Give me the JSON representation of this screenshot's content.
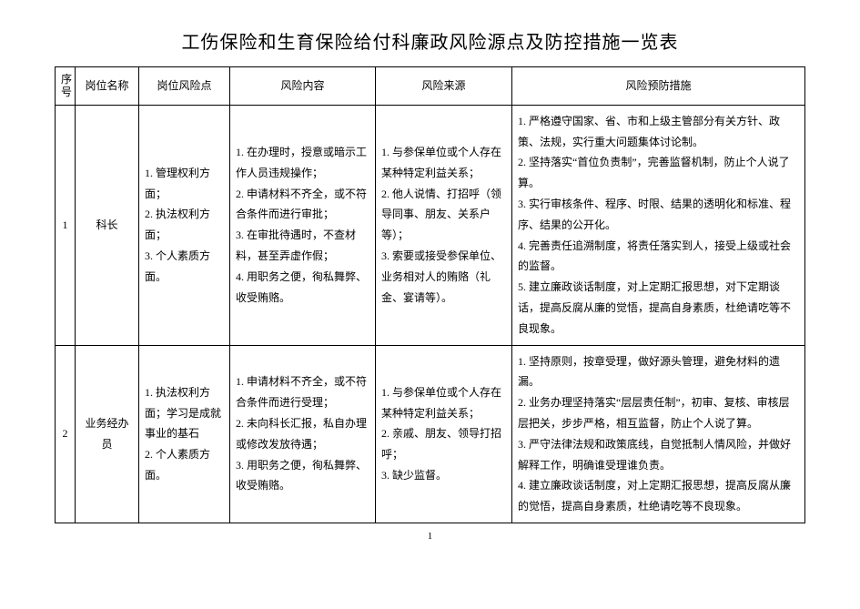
{
  "title": "工伤保险和生育保险给付科廉政风险源点及防控措施一览表",
  "page_number": "1",
  "header": {
    "seq": "序号",
    "name": "岗位名称",
    "points": "岗位风险点",
    "content": "风险内容",
    "source": "风险来源",
    "measures": "风险预防措施"
  },
  "rows": [
    {
      "seq": "1",
      "name": "科长",
      "points": "1. 管理权利方面；\n2. 执法权利方面；\n3. 个人素质方面。",
      "content": "1. 在办理时，授意或暗示工作人员违规操作；\n2. 申请材料不齐全，或不符合条件而进行审批；\n3. 在审批待遇时，不查材料，甚至弄虚作假；\n4. 用职务之便，徇私舞弊、收受贿赂。",
      "source": "1. 与参保单位或个人存在某种特定利益关系；\n2. 他人说情、打招呼（领导同事、朋友、关系户等）；\n3. 索要或接受参保单位、业务相对人的贿赂（礼金、宴请等）。",
      "measures": "1. 严格遵守国家、省、市和上级主管部分有关方针、政策、法规，实行重大问题集体讨论制。\n2. 坚持落实“首位负责制”，完善监督机制，防止个人说了算。\n3. 实行审核条件、程序、时限、结果的透明化和标准、程序、结果的公开化。\n4. 完善责任追溯制度，将责任落实到人，接受上级或社会的监督。\n5. 建立廉政谈话制度，对上定期汇报思想，对下定期谈话，提高反腐从廉的觉悟，提高自身素质，杜绝请吃等不良现象。"
    },
    {
      "seq": "2",
      "name": "业务经办员",
      "points": "1. 执法权利方面；学习是成就事业的基石\n2. 个人素质方面。",
      "content": "1. 申请材料不齐全，或不符合条件而进行受理；\n2. 未向科长汇报，私自办理或修改发放待遇；\n3. 用职务之便，徇私舞弊、收受贿赂。",
      "source": "1. 与参保单位或个人存在某种特定利益关系；\n2. 亲戚、朋友、领导打招呼；\n3. 缺少监督。",
      "measures": "1. 坚持原则，按章受理，做好源头管理，避免材料的遗漏。\n2. 业务办理坚持落实“层层责任制”，初审、复核、审核层层把关，步步严格，相互监督，防止个人说了算。\n3. 严守法律法规和政策底线，自觉抵制人情风险，并做好解释工作，明确谁受理谁负责。\n4. 建立廉政谈话制度，对上定期汇报思想，提高反腐从廉的觉悟，提高自身素质，杜绝请吃等不良现象。"
    }
  ]
}
